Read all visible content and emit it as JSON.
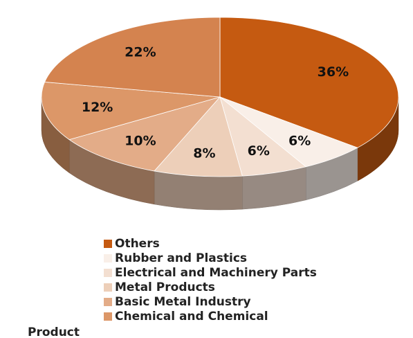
{
  "chart_data": {
    "type": "pie",
    "categories": [
      "Others",
      "Rubber and Plastics",
      "Electrical and Machinery Parts",
      "Metal Products",
      "Basic Metal Industry",
      "Chemical and Chemical",
      null
    ],
    "values": [
      36,
      6,
      6,
      8,
      10,
      12,
      22
    ],
    "value_labels": [
      "36%",
      "6%",
      "6%",
      "8%",
      "10%",
      "12%",
      "22%"
    ],
    "colors": [
      "#c55a11",
      "#f9efe8",
      "#f3dfd1",
      "#edcfb9",
      "#e3ac88",
      "#dc9768",
      "#d4834f"
    ],
    "annotation": "Product"
  }
}
